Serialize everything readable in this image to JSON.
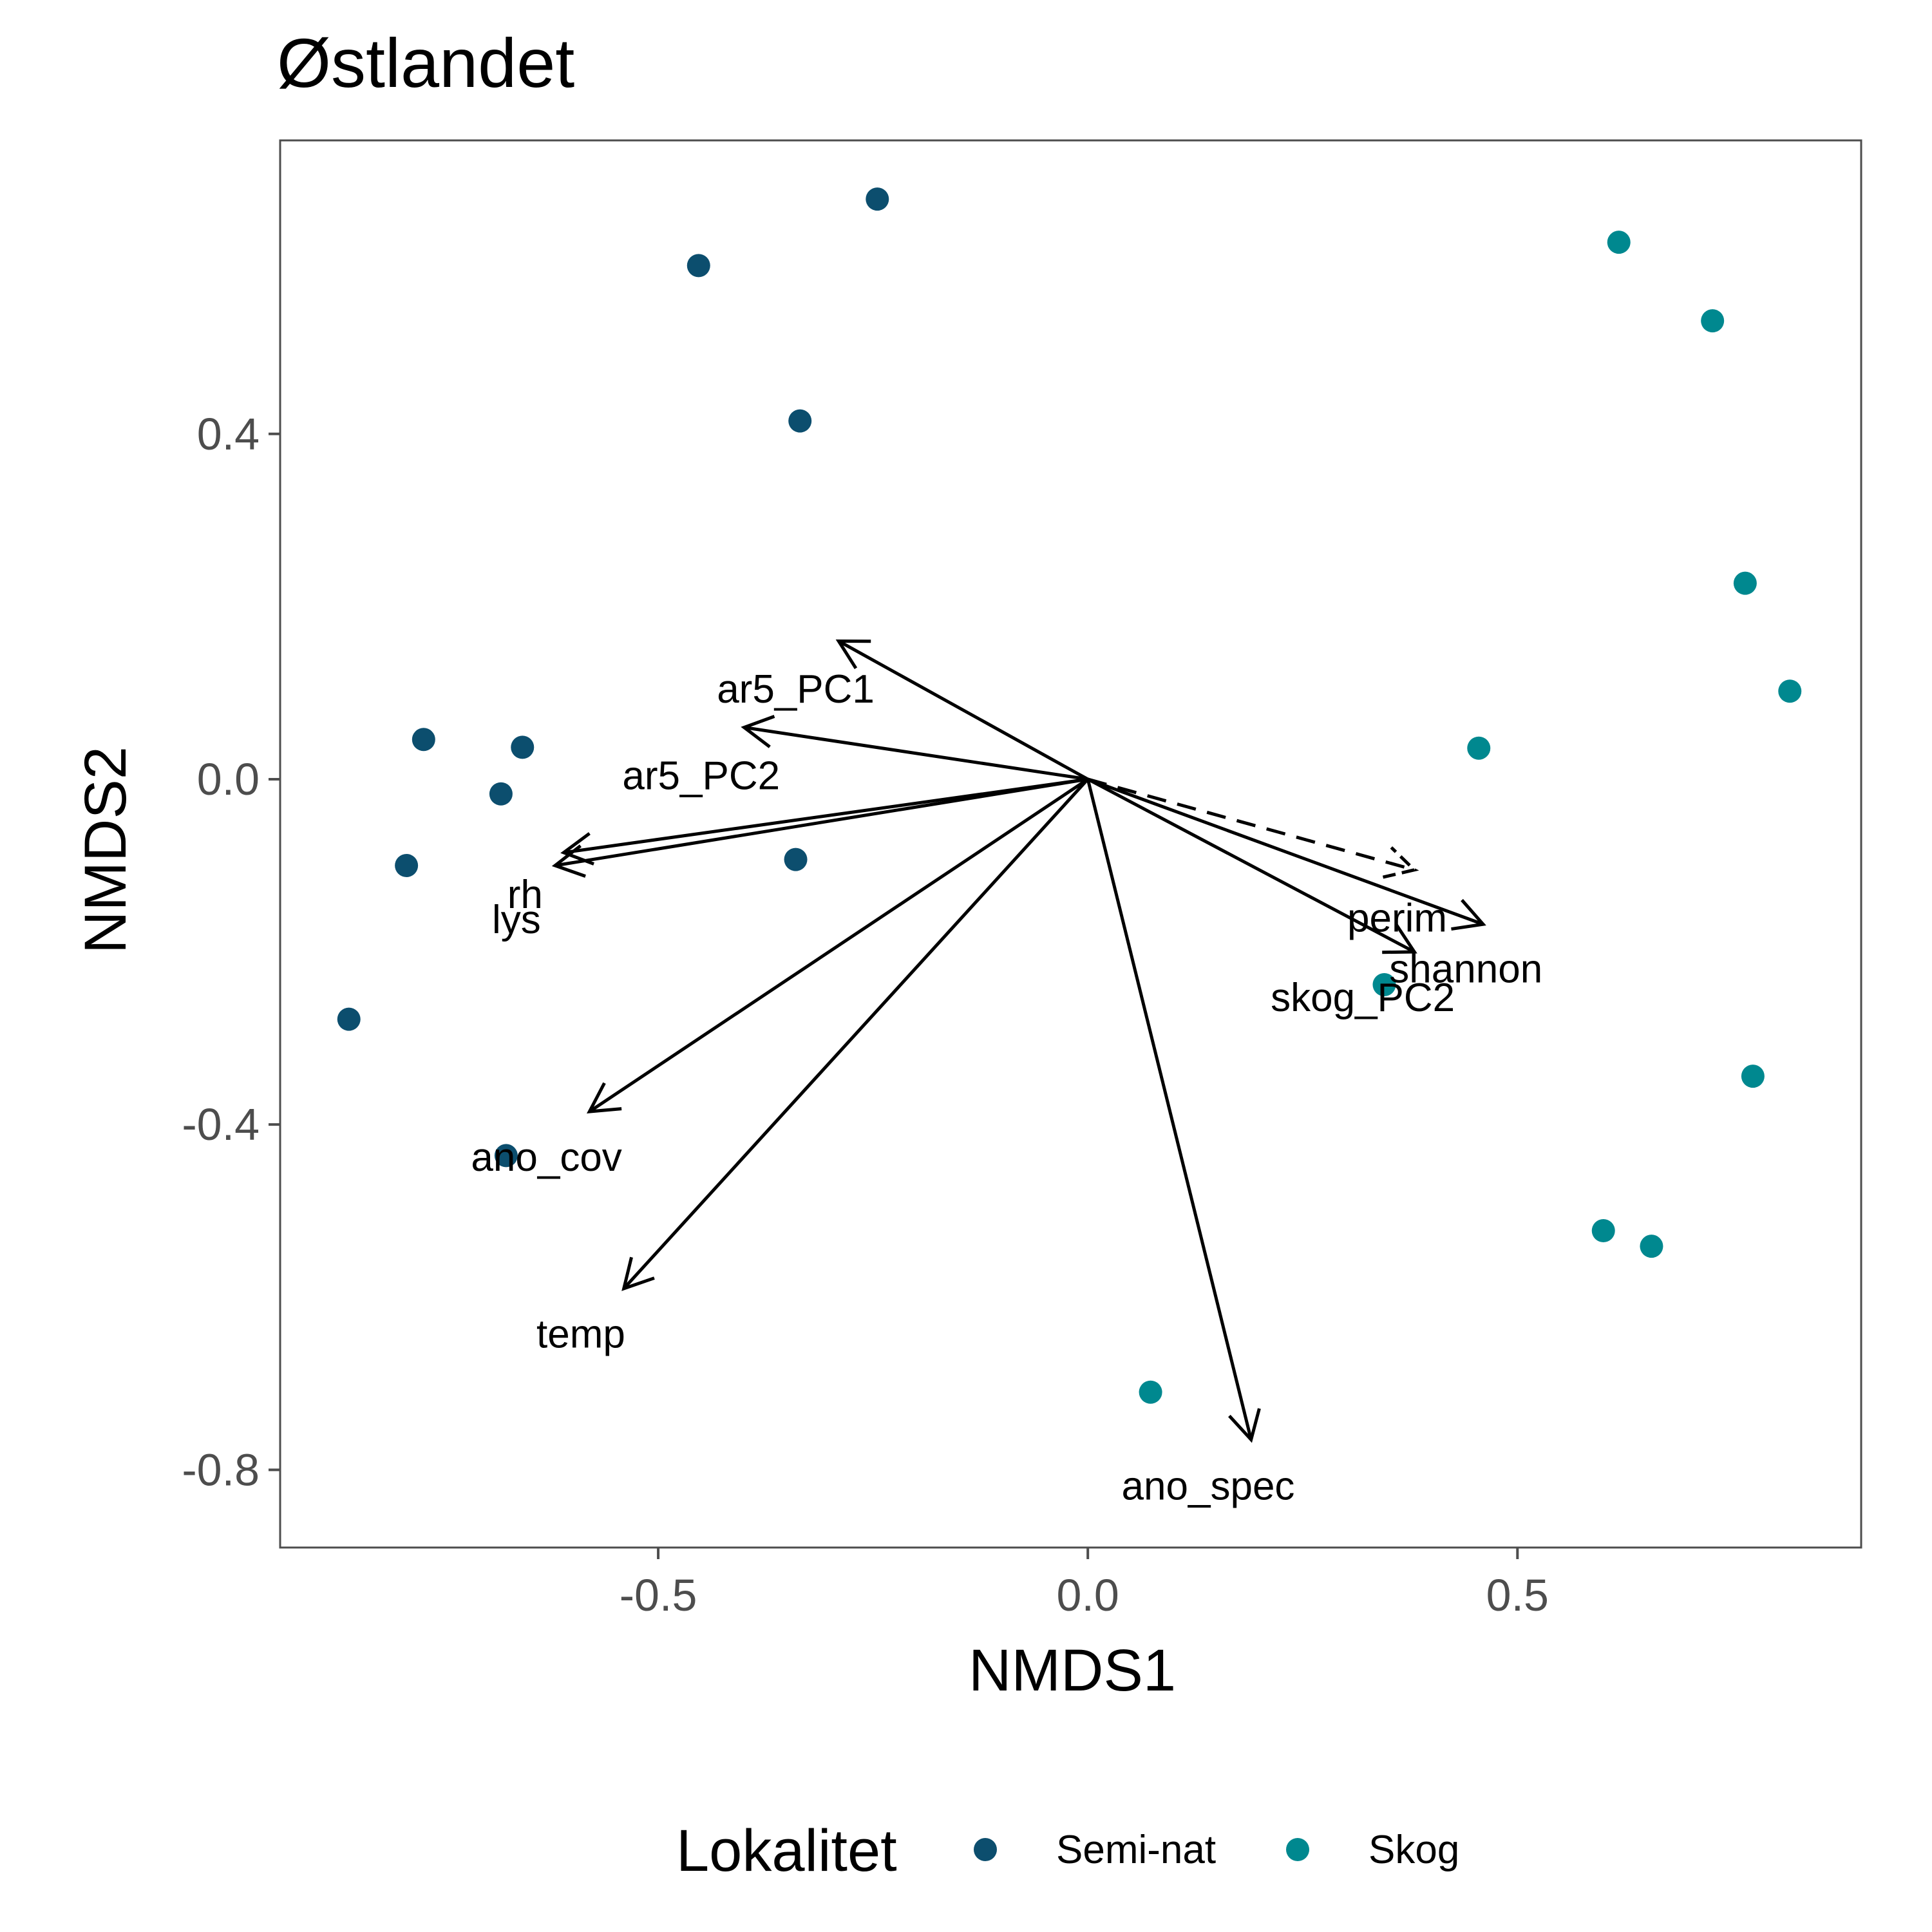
{
  "chart_data": {
    "type": "scatter",
    "title": "Østlandet",
    "xlabel": "NMDS1",
    "ylabel": "NMDS2",
    "xlim": [
      -0.94,
      0.9
    ],
    "ylim": [
      -0.89,
      0.74
    ],
    "xticks": [
      -0.5,
      0.0,
      0.5
    ],
    "xtick_labels": [
      "-0.5",
      "0.0",
      "0.5"
    ],
    "yticks": [
      -0.8,
      -0.4,
      0.0,
      0.4
    ],
    "ytick_labels": [
      "-0.8",
      "-0.4",
      "0.0",
      "0.4"
    ],
    "grid": false,
    "legend": {
      "title": "Lokalitet",
      "position": "bottom"
    },
    "series": [
      {
        "name": "Semi-nat",
        "color": "#0c4e6e",
        "points": [
          {
            "x": -0.245,
            "y": 0.672
          },
          {
            "x": -0.453,
            "y": 0.595
          },
          {
            "x": -0.335,
            "y": 0.415
          },
          {
            "x": -0.773,
            "y": 0.046
          },
          {
            "x": -0.658,
            "y": 0.037
          },
          {
            "x": -0.683,
            "y": -0.017
          },
          {
            "x": -0.34,
            "y": -0.093
          },
          {
            "x": -0.793,
            "y": -0.1
          },
          {
            "x": -0.86,
            "y": -0.278
          },
          {
            "x": -0.677,
            "y": -0.436
          }
        ]
      },
      {
        "name": "Skog",
        "color": "#00888f",
        "points": [
          {
            "x": 0.618,
            "y": 0.622
          },
          {
            "x": 0.727,
            "y": 0.531
          },
          {
            "x": 0.765,
            "y": 0.227
          },
          {
            "x": 0.817,
            "y": 0.102
          },
          {
            "x": 0.455,
            "y": 0.036
          },
          {
            "x": 0.345,
            "y": -0.238
          },
          {
            "x": 0.774,
            "y": -0.344
          },
          {
            "x": 0.6,
            "y": -0.523
          },
          {
            "x": 0.656,
            "y": -0.541
          },
          {
            "x": 0.073,
            "y": -0.71
          }
        ]
      }
    ],
    "vectors": [
      {
        "name": "ar5_PC1",
        "x": -0.29,
        "y": 0.16,
        "label_x": -0.34,
        "label_y": 0.105,
        "dashed": false
      },
      {
        "name": "ar5_PC2",
        "x": -0.4,
        "y": 0.06,
        "label_x": -0.45,
        "label_y": 0.005,
        "dashed": false
      },
      {
        "name": "rh",
        "x": -0.61,
        "y": -0.085,
        "label_x": -0.655,
        "label_y": -0.133,
        "dashed": false
      },
      {
        "name": "lys",
        "x": -0.62,
        "y": -0.1,
        "label_x": -0.665,
        "label_y": -0.162,
        "dashed": false
      },
      {
        "name": "ano_cov",
        "x": -0.58,
        "y": -0.385,
        "label_x": -0.63,
        "label_y": -0.437,
        "dashed": false
      },
      {
        "name": "temp",
        "x": -0.54,
        "y": -0.59,
        "label_x": -0.59,
        "label_y": -0.642,
        "dashed": false
      },
      {
        "name": "ano_spec",
        "x": 0.19,
        "y": -0.765,
        "label_x": 0.14,
        "label_y": -0.818,
        "dashed": false
      },
      {
        "name": "perim",
        "x": 0.46,
        "y": -0.168,
        "label_x": 0.36,
        "label_y": -0.16,
        "dashed": false
      },
      {
        "name": "shannon",
        "x": 0.38,
        "y": -0.2,
        "label_x": 0.44,
        "label_y": -0.219,
        "dashed": false
      },
      {
        "name": "skog_PC2",
        "x": 0.38,
        "y": -0.105,
        "label_x": 0.32,
        "label_y": -0.252,
        "dashed": true
      }
    ],
    "colors": {
      "Semi-nat": "#0c4e6e",
      "Skog": "#00888f"
    }
  }
}
